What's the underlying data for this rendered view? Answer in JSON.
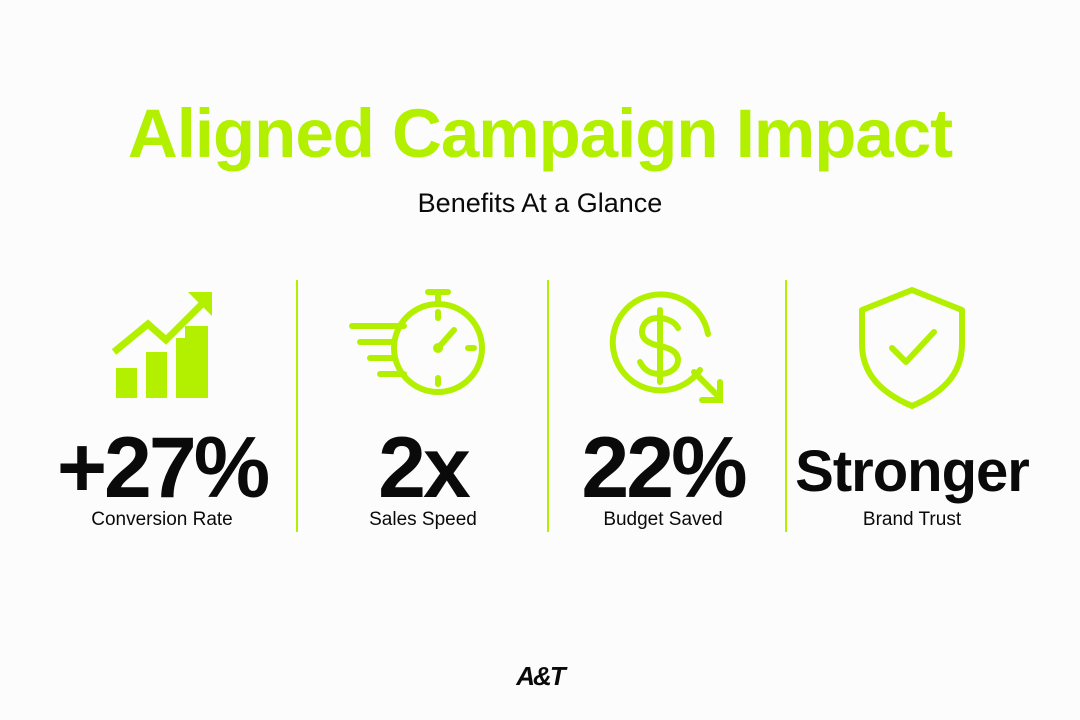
{
  "colors": {
    "accent": "#b3f000",
    "text": "#0a0a0a",
    "background": "#fcfcfc"
  },
  "header": {
    "title": "Aligned Campaign Impact",
    "subtitle": "Benefits At a Glance"
  },
  "stats": [
    {
      "icon": "bar-chart-growth-icon",
      "value": "+27%",
      "label": "Conversion Rate"
    },
    {
      "icon": "stopwatch-speed-icon",
      "value": "2x",
      "label": "Sales Speed"
    },
    {
      "icon": "dollar-savings-icon",
      "value": "22%",
      "label": "Budget Saved"
    },
    {
      "icon": "shield-check-icon",
      "value": "Stronger",
      "label": "Brand Trust"
    }
  ],
  "footer": {
    "logo_text": "A&T"
  }
}
